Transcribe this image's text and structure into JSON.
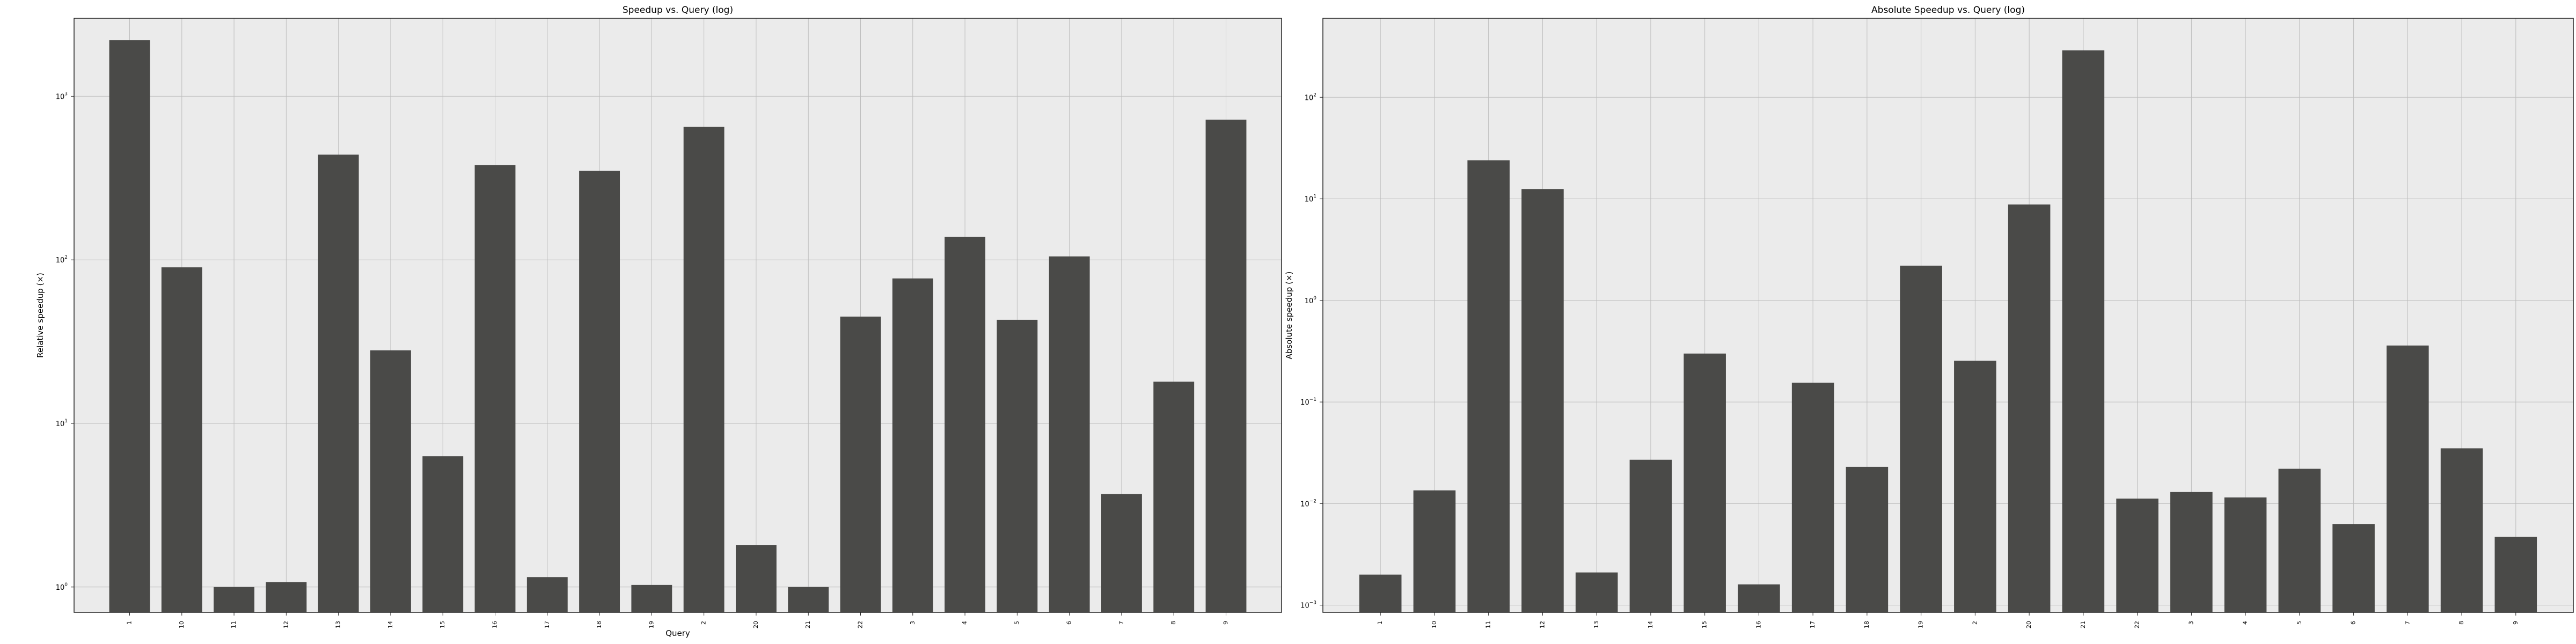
{
  "chart_data": [
    {
      "type": "bar",
      "title": "Speedup vs. Query (log)",
      "xlabel": "Query",
      "ylabel": "Relative speedup (×)",
      "yscale": "log",
      "ylim": [
        0.7,
        3000
      ],
      "grid": true,
      "categories": [
        "1",
        "10",
        "11",
        "12",
        "13",
        "14",
        "15",
        "16",
        "17",
        "18",
        "19",
        "2",
        "20",
        "21",
        "22",
        "3",
        "4",
        "5",
        "6",
        "7",
        "8",
        "9"
      ],
      "values": [
        2200,
        90,
        1.0,
        1.07,
        440,
        28,
        6.3,
        380,
        1.15,
        350,
        1.03,
        650,
        1.8,
        1.0,
        45,
        77,
        138,
        43,
        105,
        3.7,
        18,
        720
      ],
      "yticks": [
        {
          "value": 1,
          "base": "10",
          "exp": "0"
        },
        {
          "value": 10,
          "base": "10",
          "exp": "1"
        },
        {
          "value": 100,
          "base": "10",
          "exp": "2"
        },
        {
          "value": 1000,
          "base": "10",
          "exp": "3"
        }
      ],
      "bar_color": "#4a4a48",
      "background": "#ebebeb",
      "grid_color": "#bdbdbd"
    },
    {
      "type": "bar",
      "title": "Absolute Speedup vs. Query (log)",
      "xlabel": "",
      "ylabel": "Absolute speedup (×)",
      "yscale": "log",
      "ylim": [
        0.00085,
        600
      ],
      "grid": true,
      "categories": [
        "1",
        "10",
        "11",
        "12",
        "13",
        "14",
        "15",
        "16",
        "17",
        "18",
        "19",
        "2",
        "20",
        "21",
        "22",
        "3",
        "4",
        "5",
        "6",
        "7",
        "8",
        "9"
      ],
      "values": [
        0.002,
        0.0135,
        24,
        12.5,
        0.0021,
        0.027,
        0.3,
        0.0016,
        0.155,
        0.023,
        2.2,
        0.255,
        8.8,
        290,
        0.0112,
        0.013,
        0.0115,
        0.022,
        0.0063,
        0.36,
        0.035,
        0.0047
      ],
      "yticks": [
        {
          "value": 0.001,
          "base": "10",
          "exp": "−3"
        },
        {
          "value": 0.01,
          "base": "10",
          "exp": "−2"
        },
        {
          "value": 0.1,
          "base": "10",
          "exp": "−1"
        },
        {
          "value": 1,
          "base": "10",
          "exp": "0"
        },
        {
          "value": 10,
          "base": "10",
          "exp": "1"
        },
        {
          "value": 100,
          "base": "10",
          "exp": "2"
        }
      ],
      "bar_color": "#4a4a48",
      "background": "#ebebeb",
      "grid_color": "#bdbdbd"
    }
  ]
}
